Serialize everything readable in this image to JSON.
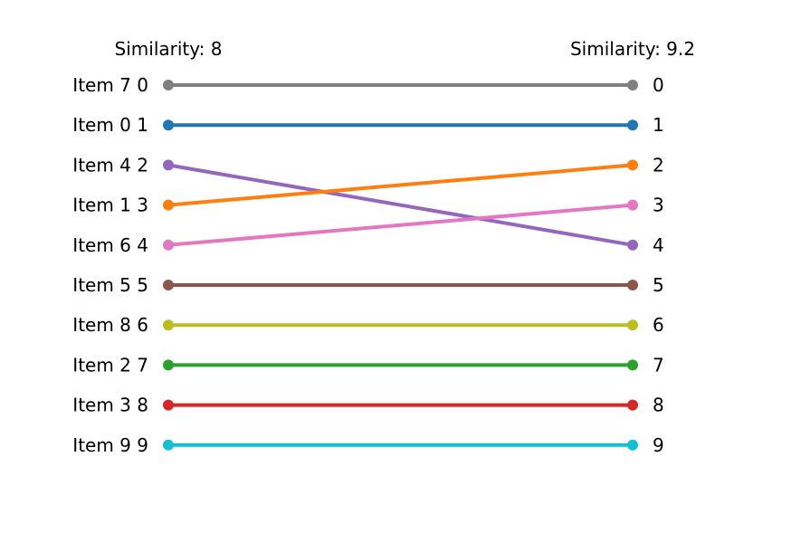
{
  "chart_data": {
    "type": "line",
    "subtype": "slope-rank",
    "title": "",
    "left_header": "Similarity: 8",
    "right_header": "Similarity: 9.2",
    "left_labels": [
      "Item 7 0",
      "Item 0 1",
      "Item 4 2",
      "Item 1 3",
      "Item 6 4",
      "Item 5 5",
      "Item 8 6",
      "Item 2 7",
      "Item 3 8",
      "Item 9 9"
    ],
    "right_labels": [
      "0",
      "1",
      "2",
      "3",
      "4",
      "5",
      "6",
      "7",
      "8",
      "9"
    ],
    "series": [
      {
        "item": "Item 7",
        "left_rank": 0,
        "right_rank": 0,
        "color": "#7f7f7f"
      },
      {
        "item": "Item 0",
        "left_rank": 1,
        "right_rank": 1,
        "color": "#1f77b4"
      },
      {
        "item": "Item 4",
        "left_rank": 2,
        "right_rank": 4,
        "color": "#9467bd"
      },
      {
        "item": "Item 1",
        "left_rank": 3,
        "right_rank": 2,
        "color": "#ff7f0e"
      },
      {
        "item": "Item 6",
        "left_rank": 4,
        "right_rank": 3,
        "color": "#e377c2"
      },
      {
        "item": "Item 5",
        "left_rank": 5,
        "right_rank": 5,
        "color": "#8c564b"
      },
      {
        "item": "Item 8",
        "left_rank": 6,
        "right_rank": 6,
        "color": "#bcbd22"
      },
      {
        "item": "Item 2",
        "left_rank": 7,
        "right_rank": 7,
        "color": "#2ca02c"
      },
      {
        "item": "Item 3",
        "left_rank": 8,
        "right_rank": 8,
        "color": "#d62728"
      },
      {
        "item": "Item 9",
        "left_rank": 9,
        "right_rank": 9,
        "color": "#17becf"
      }
    ],
    "grid": false,
    "axes_visible": false
  }
}
